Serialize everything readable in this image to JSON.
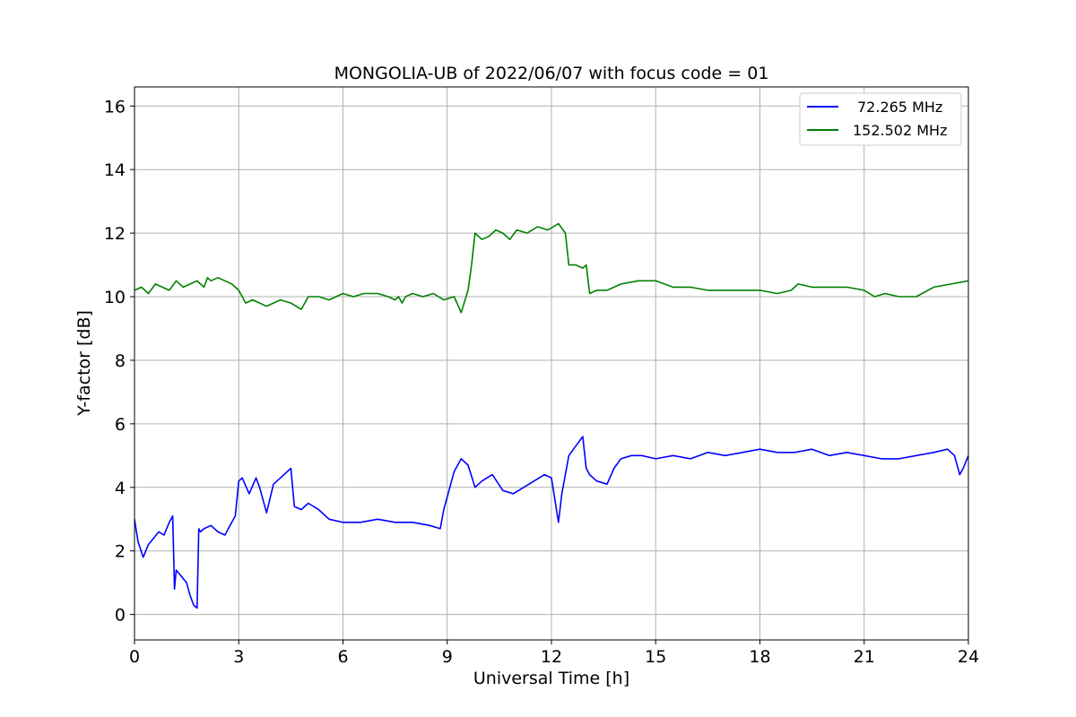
{
  "chart_data": {
    "type": "line",
    "title": "MONGOLIA-UB of 2022/06/07 with focus code = 01",
    "xlabel": "Universal Time [h]",
    "ylabel": "Y-factor [dB]",
    "xlim": [
      0,
      24
    ],
    "ylim": [
      -0.8,
      16.6
    ],
    "xticks": [
      0,
      3,
      6,
      9,
      12,
      15,
      18,
      21,
      24
    ],
    "xtick_labels": [
      "0",
      "3",
      "6",
      "9",
      "12",
      "15",
      "18",
      "21",
      "24"
    ],
    "yticks": [
      0,
      2,
      4,
      6,
      8,
      10,
      12,
      14,
      16
    ],
    "ytick_labels": [
      "0",
      "2",
      "4",
      "6",
      "8",
      "10",
      "12",
      "14",
      "16"
    ],
    "grid": true,
    "legend_position": "top-right",
    "series": [
      {
        "name": "72.265 MHz",
        "color": "#0000ff",
        "x": [
          0.0,
          0.1,
          0.25,
          0.4,
          0.55,
          0.7,
          0.85,
          1.0,
          1.1,
          1.15,
          1.2,
          1.35,
          1.5,
          1.6,
          1.7,
          1.8,
          1.85,
          1.9,
          2.0,
          2.2,
          2.4,
          2.6,
          2.8,
          2.9,
          3.0,
          3.1,
          3.3,
          3.5,
          3.6,
          3.8,
          4.0,
          4.2,
          4.4,
          4.5,
          4.6,
          4.8,
          5.0,
          5.3,
          5.6,
          6.0,
          6.5,
          7.0,
          7.5,
          8.0,
          8.5,
          8.8,
          8.9,
          9.0,
          9.2,
          9.4,
          9.6,
          9.8,
          10.0,
          10.3,
          10.6,
          10.9,
          11.2,
          11.5,
          11.8,
          12.0,
          12.1,
          12.2,
          12.3,
          12.5,
          12.7,
          12.9,
          13.0,
          13.1,
          13.3,
          13.6,
          13.8,
          14.0,
          14.3,
          14.6,
          15.0,
          15.5,
          16.0,
          16.5,
          17.0,
          17.5,
          18.0,
          18.5,
          19.0,
          19.5,
          20.0,
          20.5,
          21.0,
          21.5,
          22.0,
          22.5,
          23.0,
          23.4,
          23.6,
          23.75,
          23.85,
          24.0
        ],
        "y": [
          3.0,
          2.3,
          1.8,
          2.2,
          2.4,
          2.6,
          2.5,
          2.9,
          3.1,
          0.8,
          1.4,
          1.2,
          1.0,
          0.6,
          0.3,
          0.2,
          2.7,
          2.6,
          2.7,
          2.8,
          2.6,
          2.5,
          2.9,
          3.1,
          4.2,
          4.3,
          3.8,
          4.3,
          4.0,
          3.2,
          4.1,
          4.3,
          4.5,
          4.6,
          3.4,
          3.3,
          3.5,
          3.3,
          3.0,
          2.9,
          2.9,
          3.0,
          2.9,
          2.9,
          2.8,
          2.7,
          3.3,
          3.7,
          4.5,
          4.9,
          4.7,
          4.0,
          4.2,
          4.4,
          3.9,
          3.8,
          4.0,
          4.2,
          4.4,
          4.3,
          3.6,
          2.9,
          3.8,
          5.0,
          5.3,
          5.6,
          4.6,
          4.4,
          4.2,
          4.1,
          4.6,
          4.9,
          5.0,
          5.0,
          4.9,
          5.0,
          4.9,
          5.1,
          5.0,
          5.1,
          5.2,
          5.1,
          5.1,
          5.2,
          5.0,
          5.1,
          5.0,
          4.9,
          4.9,
          5.0,
          5.1,
          5.2,
          5.0,
          4.4,
          4.6,
          5.0
        ]
      },
      {
        "name": "152.502 MHz",
        "color": "#008000",
        "x": [
          0.0,
          0.2,
          0.4,
          0.6,
          0.8,
          1.0,
          1.2,
          1.4,
          1.6,
          1.8,
          2.0,
          2.1,
          2.2,
          2.4,
          2.6,
          2.8,
          3.0,
          3.2,
          3.4,
          3.6,
          3.8,
          4.0,
          4.2,
          4.5,
          4.8,
          5.0,
          5.3,
          5.6,
          6.0,
          6.3,
          6.6,
          7.0,
          7.3,
          7.5,
          7.6,
          7.7,
          7.8,
          8.0,
          8.3,
          8.6,
          8.9,
          9.2,
          9.4,
          9.6,
          9.7,
          9.8,
          10.0,
          10.2,
          10.4,
          10.6,
          10.8,
          11.0,
          11.3,
          11.6,
          11.9,
          12.2,
          12.4,
          12.5,
          12.7,
          12.9,
          13.0,
          13.1,
          13.3,
          13.6,
          14.0,
          14.5,
          15.0,
          15.5,
          16.0,
          16.5,
          17.0,
          17.5,
          18.0,
          18.5,
          18.9,
          19.1,
          19.5,
          20.0,
          20.5,
          21.0,
          21.3,
          21.6,
          22.0,
          22.5,
          23.0,
          23.5,
          24.0
        ],
        "y": [
          10.2,
          10.3,
          10.1,
          10.4,
          10.3,
          10.2,
          10.5,
          10.3,
          10.4,
          10.5,
          10.3,
          10.6,
          10.5,
          10.6,
          10.5,
          10.4,
          10.2,
          9.8,
          9.9,
          9.8,
          9.7,
          9.8,
          9.9,
          9.8,
          9.6,
          10.0,
          10.0,
          9.9,
          10.1,
          10.0,
          10.1,
          10.1,
          10.0,
          9.9,
          10.0,
          9.8,
          10.0,
          10.1,
          10.0,
          10.1,
          9.9,
          10.0,
          9.5,
          10.2,
          11.0,
          12.0,
          11.8,
          11.9,
          12.1,
          12.0,
          11.8,
          12.1,
          12.0,
          12.2,
          12.1,
          12.3,
          12.0,
          11.0,
          11.0,
          10.9,
          11.0,
          10.1,
          10.2,
          10.2,
          10.4,
          10.5,
          10.5,
          10.3,
          10.3,
          10.2,
          10.2,
          10.2,
          10.2,
          10.1,
          10.2,
          10.4,
          10.3,
          10.3,
          10.3,
          10.2,
          10.0,
          10.1,
          10.0,
          10.0,
          10.3,
          10.4,
          10.5
        ]
      }
    ]
  }
}
